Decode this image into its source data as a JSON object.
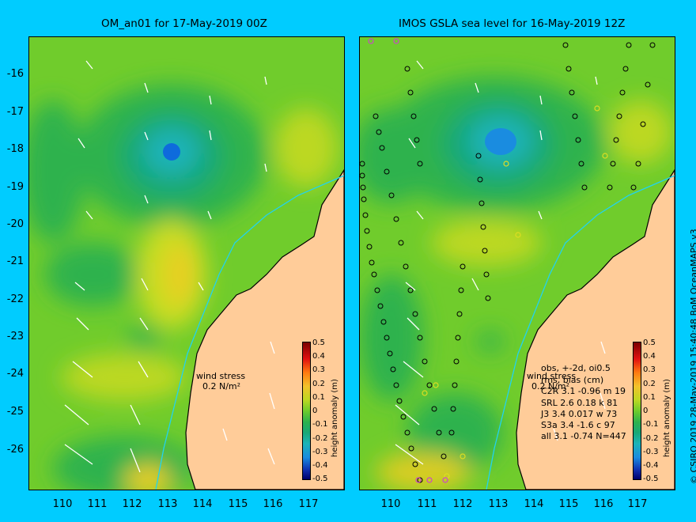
{
  "left_panel": {
    "title": "OM_an01 for 17-May-2019 00Z",
    "wind_stress_label": "wind stress",
    "wind_stress_scale": "0.2 N/m²"
  },
  "right_panel": {
    "title": "IMOS GSLA sea level  for 16-May-2019 12Z",
    "wind_stress_label": "wind stress",
    "wind_stress_scale": "0.2 N/m²",
    "stats_header_1": "obs, +-2d, oi0.5",
    "stats_header_2": "rms, bias (cm)",
    "stats_rows": [
      "C2R   3.1 -0.96 m 19",
      "SRL   2.6 0.18 k 81",
      "J3   3.4 0.017 w 73",
      "S3a   3.4 -1.6 c 97",
      "all   3.1 -0.74 N=447"
    ]
  },
  "latitude_labels": [
    "-16",
    "-17",
    "-18",
    "-19",
    "-20",
    "-21",
    "-22",
    "-23",
    "-24",
    "-25",
    "-26"
  ],
  "longitude_labels": [
    "110",
    "111",
    "112",
    "113",
    "114",
    "115",
    "116",
    "117"
  ],
  "colorbar": {
    "title": "height anomaly (m)",
    "ticks": [
      "0.5",
      "0.4",
      "0.3",
      "0.2",
      "0.1",
      "0",
      "-0.1",
      "-0.2",
      "-0.3",
      "-0.4",
      "-0.5"
    ],
    "range": [
      -0.5,
      0.5
    ]
  },
  "credit": "© CSIRO 2019   28-May-2019 15:40:48 BoM OceanMAPS v3",
  "colors": {
    "background": "#00ccff",
    "land": "#ffcc99",
    "base_anomaly": "#66cc33",
    "positive_anomaly": "#dddd22",
    "negative_anomaly": "#2bb259",
    "eddy_core": "#1a8ce0",
    "shelf_line": "#22d3ee"
  }
}
